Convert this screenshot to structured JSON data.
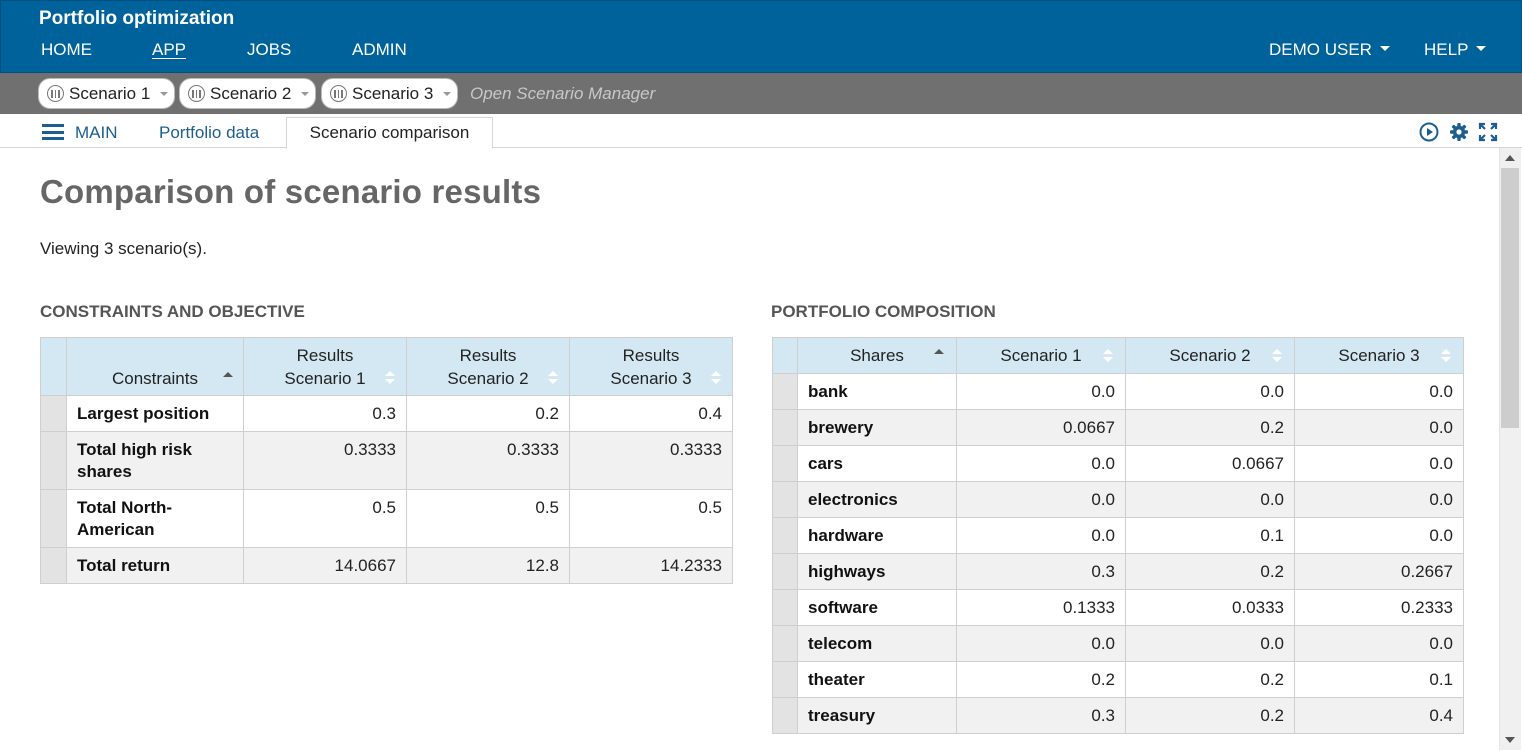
{
  "header": {
    "app_title": "Portfolio optimization",
    "nav_left": [
      "HOME",
      "APP",
      "JOBS",
      "ADMIN"
    ],
    "active_nav": "APP",
    "nav_right": [
      "DEMO USER",
      "HELP"
    ]
  },
  "scenario_bar": {
    "scenarios": [
      "Scenario 1",
      "Scenario 2",
      "Scenario 3"
    ],
    "open_manager": "Open Scenario Manager"
  },
  "tabs": {
    "main": "MAIN",
    "items": [
      "Portfolio data",
      "Scenario comparison"
    ],
    "active": "Scenario comparison",
    "icons": [
      "play-icon",
      "gear-icon",
      "fullscreen-icon"
    ]
  },
  "page": {
    "title": "Comparison of scenario results",
    "viewing": "Viewing 3 scenario(s)."
  },
  "constraints": {
    "heading": "CONSTRAINTS AND OBJECTIVE",
    "columns": [
      "Constraints",
      "Results Scenario 1",
      "Results Scenario 2",
      "Results Scenario 3"
    ],
    "col_lines": [
      [
        "Constraints"
      ],
      [
        "Results",
        "Scenario 1"
      ],
      [
        "Results",
        "Scenario 2"
      ],
      [
        "Results",
        "Scenario 3"
      ]
    ],
    "rows": [
      {
        "label": [
          "Largest position"
        ],
        "values": [
          "0.3",
          "0.2",
          "0.4"
        ]
      },
      {
        "label": [
          "Total high risk",
          "shares"
        ],
        "values": [
          "0.3333",
          "0.3333",
          "0.3333"
        ]
      },
      {
        "label": [
          "Total North-",
          "American"
        ],
        "values": [
          "0.5",
          "0.5",
          "0.5"
        ]
      },
      {
        "label": [
          "Total return"
        ],
        "values": [
          "14.0667",
          "12.8",
          "14.2333"
        ]
      }
    ]
  },
  "composition": {
    "heading": "PORTFOLIO COMPOSITION",
    "columns": [
      "Shares",
      "Scenario 1",
      "Scenario 2",
      "Scenario 3"
    ],
    "rows": [
      {
        "label": "bank",
        "values": [
          "0.0",
          "0.0",
          "0.0"
        ]
      },
      {
        "label": "brewery",
        "values": [
          "0.0667",
          "0.2",
          "0.0"
        ]
      },
      {
        "label": "cars",
        "values": [
          "0.0",
          "0.0667",
          "0.0"
        ]
      },
      {
        "label": "electronics",
        "values": [
          "0.0",
          "0.0",
          "0.0"
        ]
      },
      {
        "label": "hardware",
        "values": [
          "0.0",
          "0.1",
          "0.0"
        ]
      },
      {
        "label": "highways",
        "values": [
          "0.3",
          "0.2",
          "0.2667"
        ]
      },
      {
        "label": "software",
        "values": [
          "0.1333",
          "0.0333",
          "0.2333"
        ]
      },
      {
        "label": "telecom",
        "values": [
          "0.0",
          "0.0",
          "0.0"
        ]
      },
      {
        "label": "theater",
        "values": [
          "0.2",
          "0.2",
          "0.1"
        ]
      },
      {
        "label": "treasury",
        "values": [
          "0.3",
          "0.2",
          "0.4"
        ]
      }
    ]
  }
}
